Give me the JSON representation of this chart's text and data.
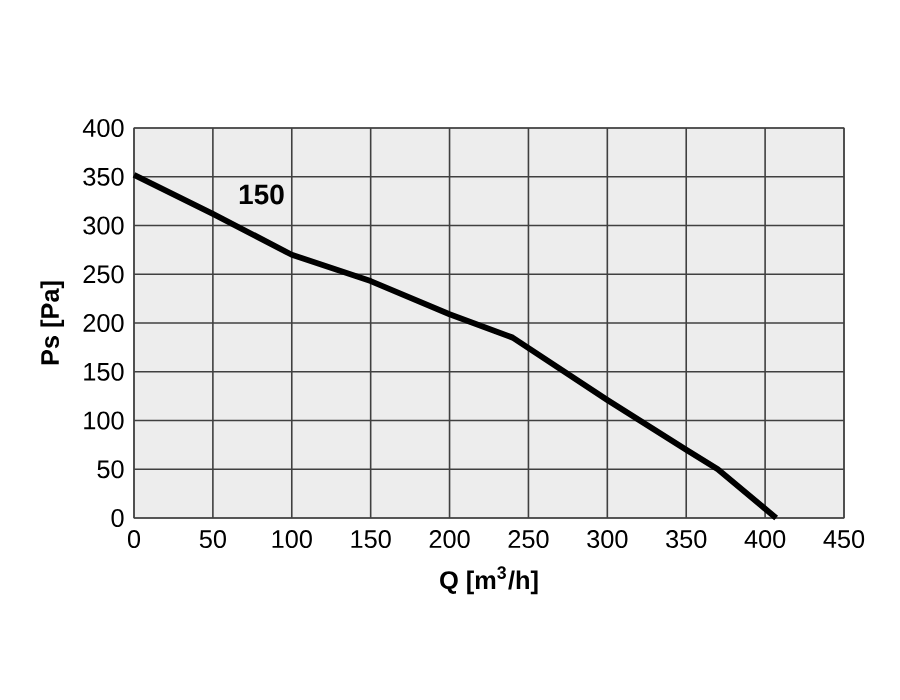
{
  "chart_data": {
    "type": "line",
    "xlabel": "Q [m$^{3}$/h]",
    "ylabel": "Ps [Pa]",
    "xlim": [
      0,
      450
    ],
    "ylim": [
      0,
      400
    ],
    "xticks": [
      0,
      50,
      100,
      150,
      200,
      250,
      300,
      350,
      400,
      450
    ],
    "yticks": [
      0,
      50,
      100,
      150,
      200,
      250,
      300,
      350,
      400
    ],
    "grid": true,
    "series": [
      {
        "name": "150",
        "color": "#000000",
        "x": [
          0,
          50,
          100,
          150,
          200,
          240,
          300,
          350,
          370,
          407
        ],
        "values": [
          352,
          312,
          270,
          243,
          209,
          185,
          121,
          70,
          50,
          0
        ]
      }
    ]
  }
}
